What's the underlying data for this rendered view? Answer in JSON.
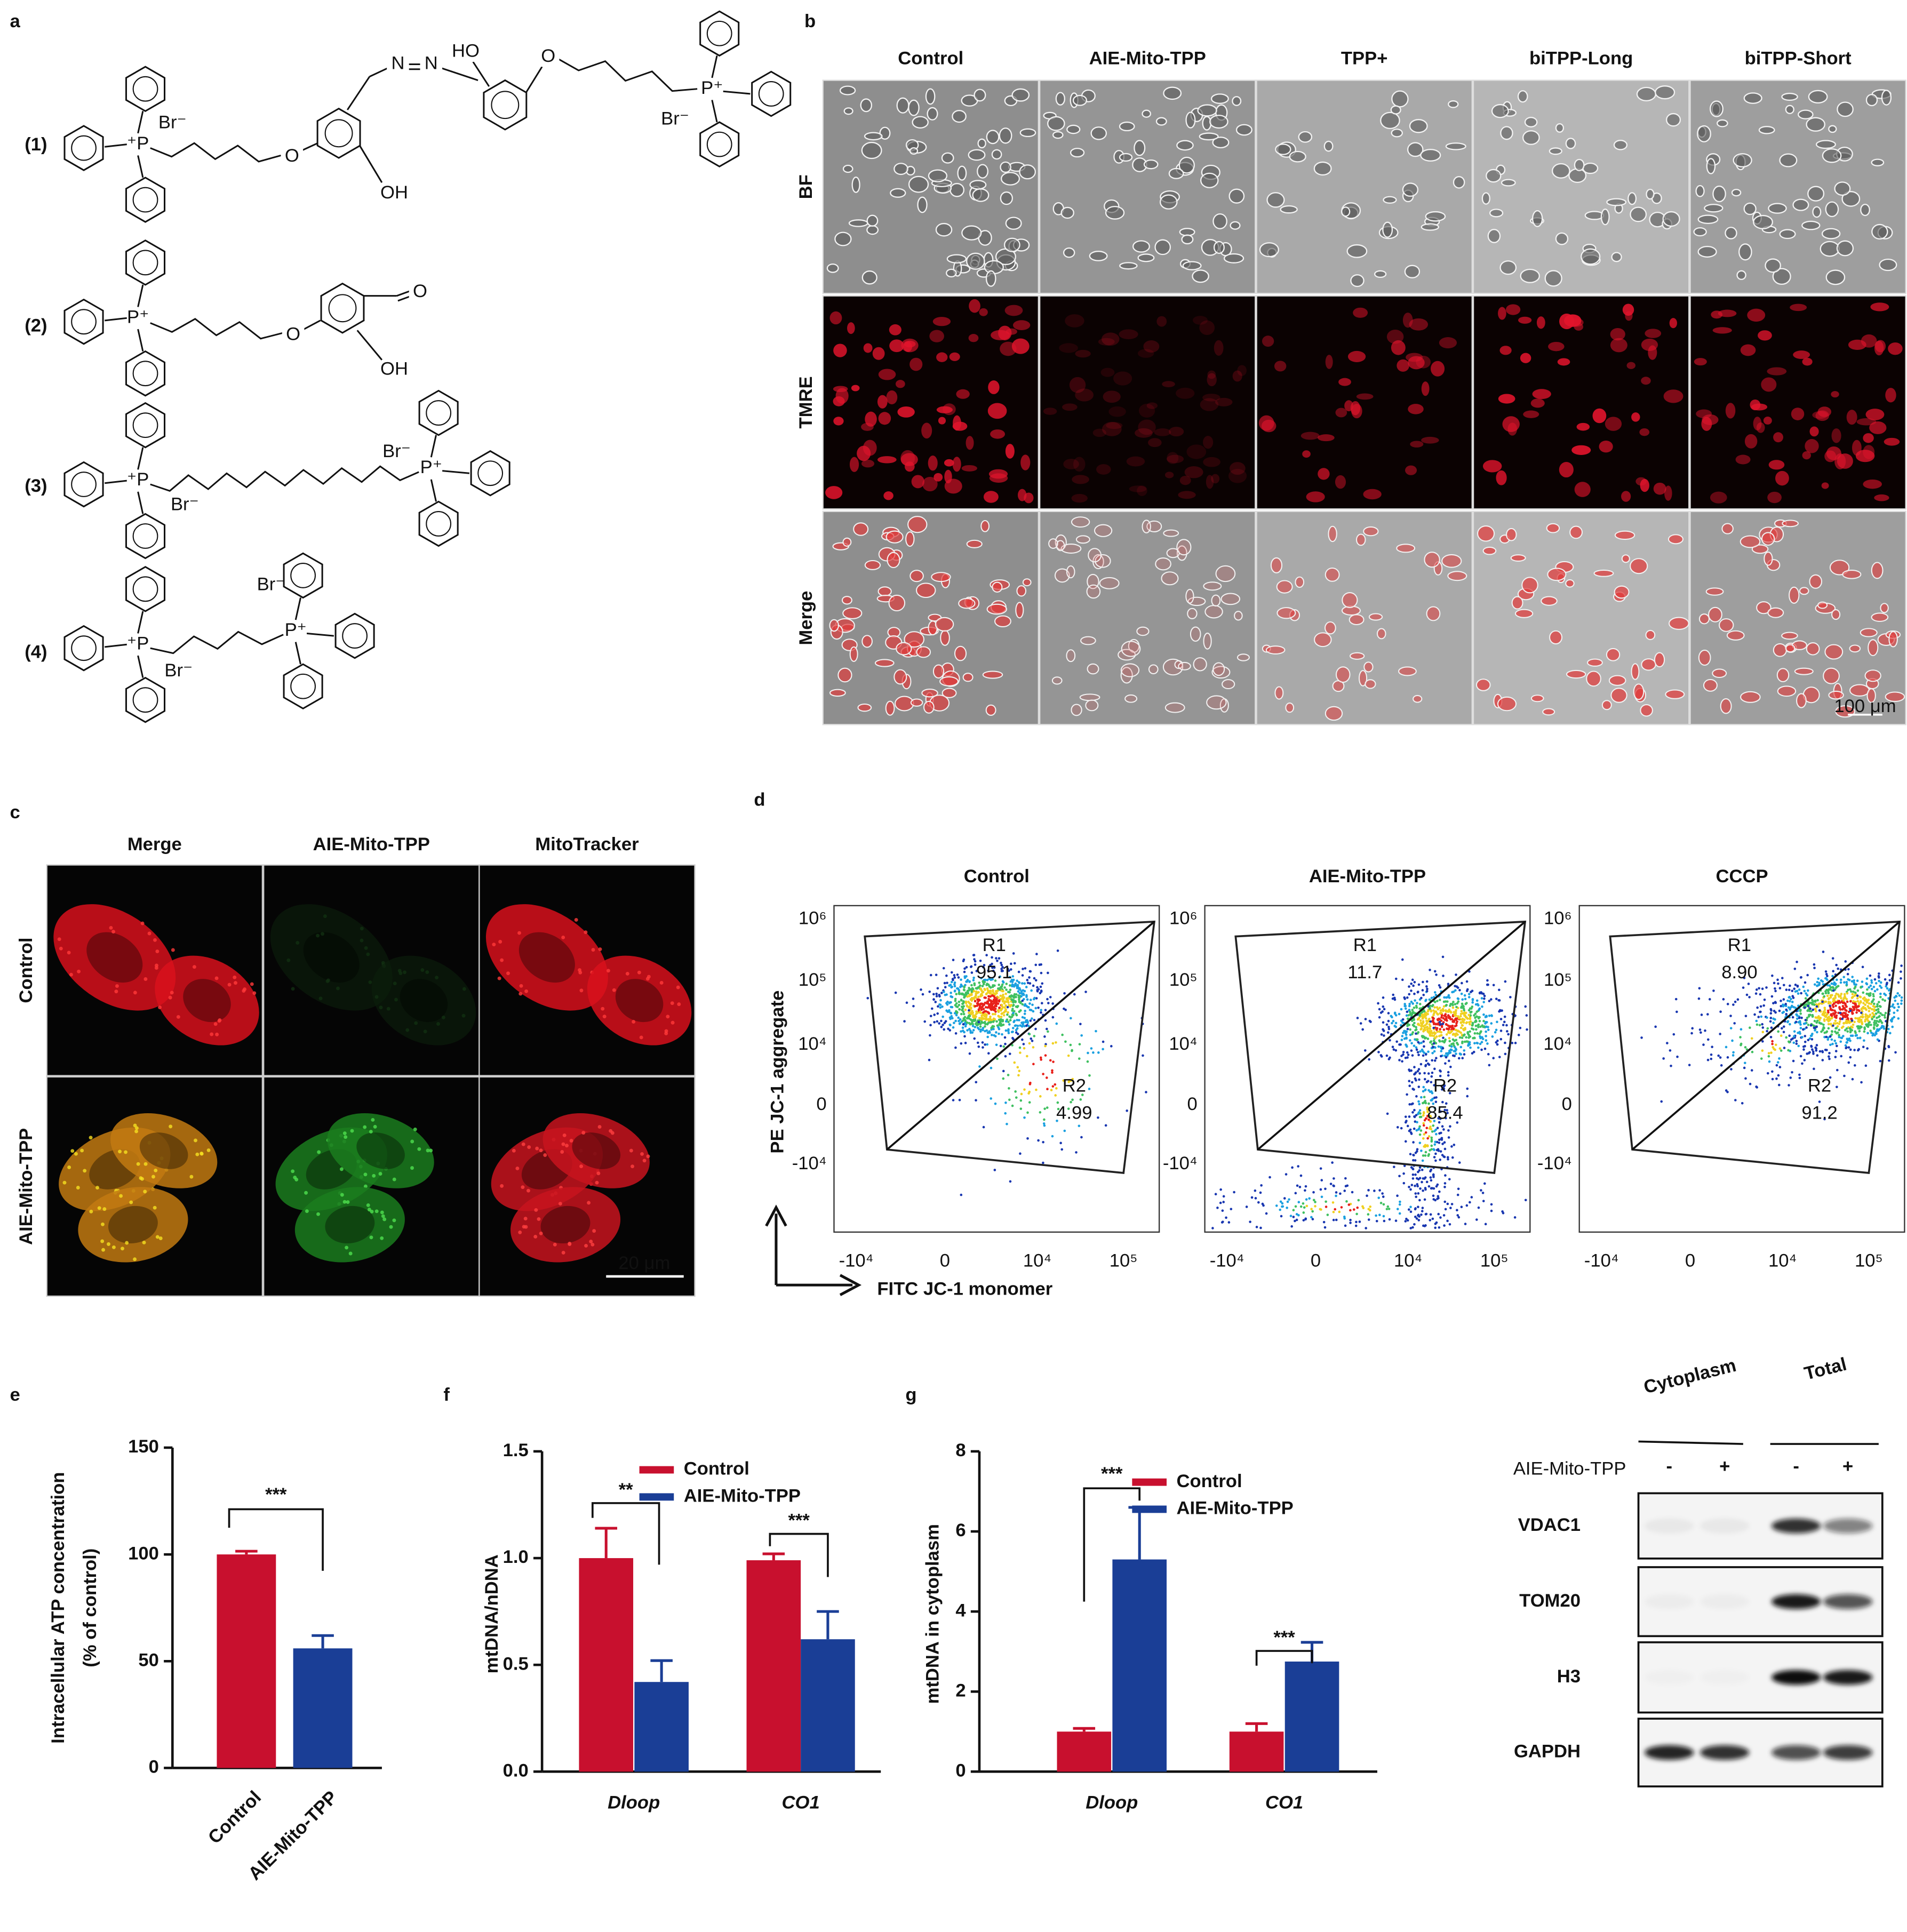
{
  "panel_labels": [
    "a",
    "b",
    "c",
    "d",
    "e",
    "f",
    "g"
  ],
  "panel_a": {
    "compounds": [
      {
        "label": "(1)",
        "atoms": [
          "⁺P",
          "Br⁻",
          "O",
          "OH",
          "N",
          "N",
          "HO",
          "O",
          "P⁺",
          "Br⁻"
        ]
      },
      {
        "label": "(2)",
        "atoms": [
          "P⁺",
          "O",
          "O",
          "OH"
        ]
      },
      {
        "label": "(3)",
        "atoms": [
          "⁺P",
          "Br⁻",
          "Br⁻",
          "P⁺"
        ]
      },
      {
        "label": "(4)",
        "atoms": [
          "⁺P",
          "Br⁻",
          "Br⁻",
          "P⁺"
        ]
      }
    ]
  },
  "panel_b": {
    "columns": [
      "Control",
      "AIE-Mito-TPP",
      "TPP+",
      "biTPP-Long",
      "biTPP-Short"
    ],
    "rows": [
      "BF",
      "TMRE",
      "Merge"
    ],
    "scale_bar": "100 μm"
  },
  "panel_c": {
    "columns": [
      "Merge",
      "AIE-Mito-TPP",
      "MitoTracker"
    ],
    "rows": [
      "Control",
      "AIE-Mito-TPP"
    ],
    "scale_bar": "20 μm"
  },
  "panel_d": {
    "axis_labels": {
      "y": "PE JC-1 aggregate",
      "x": "FITC JC-1 monomer"
    },
    "yticks": [
      "10⁶",
      "10⁵",
      "10⁴",
      "0",
      "-10⁴"
    ],
    "xticks": [
      "-10⁴",
      "0",
      "10⁴",
      "10⁵"
    ],
    "plots": [
      {
        "title": "Control",
        "gates": [
          {
            "name": "R1",
            "value": "95.1"
          },
          {
            "name": "R2",
            "value": "4.99"
          }
        ]
      },
      {
        "title": "AIE-Mito-TPP",
        "gates": [
          {
            "name": "R1",
            "value": "11.7"
          },
          {
            "name": "R2",
            "value": "85.4"
          }
        ]
      },
      {
        "title": "CCCP",
        "gates": [
          {
            "name": "R1",
            "value": "8.90"
          },
          {
            "name": "R2",
            "value": "91.2"
          }
        ]
      }
    ]
  },
  "chart_data": [
    {
      "type": "bar",
      "ylabel": [
        "Intracellular ATP concentration",
        "(% of control)"
      ],
      "categories": [
        "Control",
        "AIE-Mito-TPP"
      ],
      "values": [
        100,
        56
      ],
      "errors": [
        1.5,
        6
      ],
      "colors": [
        "#c8102e",
        "#1a3e96"
      ],
      "ylim": [
        0,
        150
      ],
      "yticks": [
        0,
        50,
        100,
        150
      ],
      "annotations": [
        "***"
      ]
    },
    {
      "type": "bar",
      "ylabel": "mtDNA/nDNA",
      "categories": [
        "Dloop",
        "CO1"
      ],
      "series": [
        {
          "name": "Control",
          "color": "#c8102e",
          "values": [
            1.0,
            0.99
          ],
          "errors": [
            0.14,
            0.03
          ]
        },
        {
          "name": "AIE-Mito-TPP",
          "color": "#1a3e96",
          "values": [
            0.42,
            0.62
          ],
          "errors": [
            0.1,
            0.13
          ]
        }
      ],
      "ylim": [
        0,
        1.5
      ],
      "yticks": [
        {
          "value": 0,
          "label": "0.0"
        },
        0.5,
        {
          "value": 1,
          "label": "1.0"
        },
        1.5
      ],
      "annotations": [
        "**",
        "***"
      ]
    },
    {
      "type": "bar",
      "ylabel": "mtDNA in cytoplasm",
      "categories": [
        "Dloop",
        "CO1"
      ],
      "series": [
        {
          "name": "Control",
          "color": "#c8102e",
          "values": [
            1.0,
            1.0
          ],
          "errors": [
            0.08,
            0.2
          ]
        },
        {
          "name": "AIE-Mito-TPP",
          "color": "#1a3e96",
          "values": [
            5.3,
            2.75
          ],
          "errors": [
            1.3,
            0.48
          ]
        }
      ],
      "ylim": [
        0,
        8
      ],
      "yticks": [
        0,
        2,
        4,
        6,
        8
      ],
      "annotations": [
        "***",
        "***"
      ]
    }
  ],
  "western_blot": {
    "groups": [
      "Cytoplasm",
      "Total"
    ],
    "treatment": "AIE-Mito-TPP",
    "signs": [
      "-",
      "+",
      "-",
      "+"
    ],
    "proteins": [
      "VDAC1",
      "TOM20",
      "H3",
      "GAPDH"
    ]
  }
}
